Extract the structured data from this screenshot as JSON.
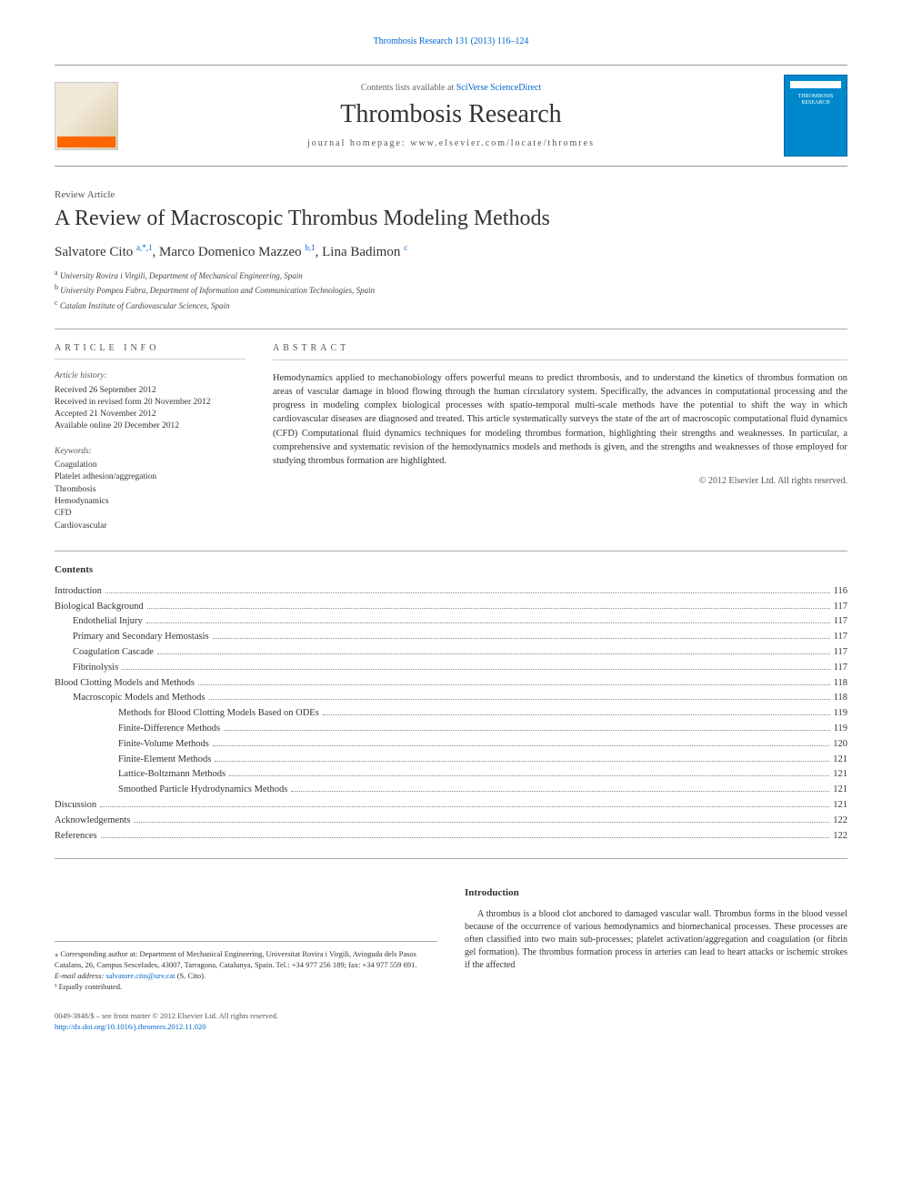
{
  "colors": {
    "link": "#0066cc",
    "text": "#333333",
    "rule": "#aaaaaa",
    "accent_orange": "#ff6600",
    "cover_blue": "#0088cc",
    "background": "#ffffff"
  },
  "typography": {
    "title_fontsize": 24,
    "journal_fontsize": 28,
    "body_fontsize": 10.5,
    "footnote_fontsize": 8.5,
    "font_family": "Georgia, Times New Roman, serif"
  },
  "top_citation": "Thrombosis Research 131 (2013) 116–124",
  "header": {
    "contents_prefix": "Contents lists available at ",
    "contents_link": "SciVerse ScienceDirect",
    "journal": "Thrombosis Research",
    "homepage_label": "journal homepage: ",
    "homepage_url": "www.elsevier.com/locate/thromres",
    "publisher_logo_text": "ELSEVIER",
    "cover_text": "THROMBOSIS RESEARCH"
  },
  "article": {
    "type": "Review Article",
    "title": "A Review of Macroscopic Thrombus Modeling Methods",
    "authors_html": "Salvatore Cito <sup>a,*,1</sup>, Marco Domenico Mazzeo <sup>b,1</sup>, Lina Badimon <sup>c</sup>",
    "affiliations": [
      {
        "mark": "a",
        "text": "University Rovira i Virgili, Department of Mechanical Engineering, Spain"
      },
      {
        "mark": "b",
        "text": "University Pompeu Fabra, Department of Information and Communication Technologies, Spain"
      },
      {
        "mark": "c",
        "text": "Catalan Institute of Cardiovascular Sciences, Spain"
      }
    ]
  },
  "article_info": {
    "heading": "ARTICLE INFO",
    "history_label": "Article history:",
    "history": [
      "Received 26 September 2012",
      "Received in revised form 20 November 2012",
      "Accepted 21 November 2012",
      "Available online 20 December 2012"
    ],
    "keywords_label": "Keywords:",
    "keywords": [
      "Coagulation",
      "Platelet adhesion/aggregation",
      "Thrombosis",
      "Hemodynamics",
      "CFD",
      "Cardiovascular"
    ]
  },
  "abstract": {
    "heading": "ABSTRACT",
    "text": "Hemodynamics applied to mechanobiology offers powerful means to predict thrombosis, and to understand the kinetics of thrombus formation on areas of vascular damage in blood flowing through the human circulatory system. Specifically, the advances in computational processing and the progress in modeling complex biological processes with spatio-temporal multi-scale methods have the potential to shift the way in which cardiovascular diseases are diagnosed and treated. This article systematically surveys the state of the art of macroscopic computational fluid dynamics (CFD) Computational fluid dynamics techniques for modeling thrombus formation, highlighting their strengths and weaknesses. In particular, a comprehensive and systematic revision of the hemodynamics models and methods is given, and the strengths and weaknesses of those employed for studying thrombus formation are highlighted.",
    "copyright": "© 2012 Elsevier Ltd. All rights reserved."
  },
  "contents": {
    "heading": "Contents",
    "items": [
      {
        "label": "Introduction",
        "page": "116",
        "indent": 0
      },
      {
        "label": "Biological Background",
        "page": "117",
        "indent": 0
      },
      {
        "label": "Endothelial Injury",
        "page": "117",
        "indent": 1
      },
      {
        "label": "Primary and Secondary Hemostasis",
        "page": "117",
        "indent": 1
      },
      {
        "label": "Coagulation Cascade",
        "page": "117",
        "indent": 1
      },
      {
        "label": "Fibrinolysis",
        "page": "117",
        "indent": 1
      },
      {
        "label": "Blood Clotting Models and Methods",
        "page": "118",
        "indent": 0
      },
      {
        "label": "Macroscopic Models and Methods",
        "page": "118",
        "indent": 1
      },
      {
        "label": "Methods for Blood Clotting Models Based on ODEs",
        "page": "119",
        "indent": 3
      },
      {
        "label": "Finite-Difference Methods",
        "page": "119",
        "indent": 3
      },
      {
        "label": "Finite-Volume Methods",
        "page": "120",
        "indent": 3
      },
      {
        "label": "Finite-Element Methods",
        "page": "121",
        "indent": 3
      },
      {
        "label": "Lattice-Boltzmann Methods",
        "page": "121",
        "indent": 3
      },
      {
        "label": "Smoothed Particle Hydrodynamics Methods",
        "page": "121",
        "indent": 3
      },
      {
        "label": "Discussion",
        "page": "121",
        "indent": 0
      },
      {
        "label": "Acknowledgements",
        "page": "122",
        "indent": 0
      },
      {
        "label": "References",
        "page": "122",
        "indent": 0
      }
    ]
  },
  "intro": {
    "heading": "Introduction",
    "text": "A thrombus is a blood clot anchored to damaged vascular wall. Thrombus forms in the blood vessel because of the occurrence of various hemodynamics and biomechanical processes. These processes are often classified into two main sub-processes; platelet activation/aggregation and coagulation (or fibrin gel formation). The thrombus formation process in arteries can lead to heart attacks or ischemic strokes if the affected"
  },
  "footnotes": {
    "corresponding": "⁎ Corresponding author at: Department of Mechanical Engineering, Universitat Rovira i Virgili, Avinguda dels Pasos Catalans, 26, Campus Sescelades, 43007, Tarragona, Catalunya, Spain. Tel.: +34 977 256 189; fax: +34 977 559 691.",
    "email_label": "E-mail address: ",
    "email": "salvatore.cito@urv.cat",
    "email_suffix": " (S. Cito).",
    "equal": "¹ Equally contributed."
  },
  "bottom": {
    "issn": "0049-3848/$ – see front matter © 2012 Elsevier Ltd. All rights reserved.",
    "doi": "http://dx.doi.org/10.1016/j.thromres.2012.11.020"
  }
}
